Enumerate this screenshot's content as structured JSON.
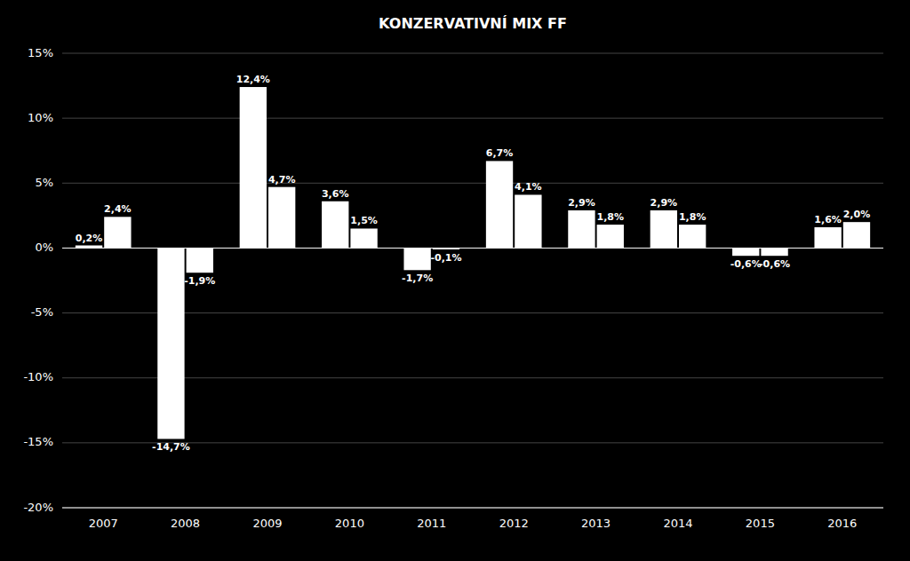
{
  "chart_data": {
    "type": "bar",
    "title": "KONZERVATIVNÍ MIX FF",
    "categories": [
      "2007",
      "2008",
      "2009",
      "2010",
      "2011",
      "2012",
      "2013",
      "2014",
      "2015",
      "2016"
    ],
    "series": [
      {
        "color": "#ffffff",
        "values": [
          0.2,
          -14.7,
          12.4,
          3.6,
          -1.7,
          6.7,
          2.9,
          2.9,
          -0.6,
          1.6
        ],
        "value_labels": [
          "0,2%",
          "-14,7%",
          "12,4%",
          "3,6%",
          "-1,7%",
          "6,7%",
          "2,9%",
          "2,9%",
          "-0,6%",
          "1,6%"
        ]
      },
      {
        "color": "#ffffff",
        "values": [
          2.4,
          -1.9,
          4.7,
          1.5,
          -0.1,
          4.1,
          1.8,
          1.8,
          -0.6,
          2.0
        ],
        "value_labels": [
          "2,4%",
          "-1,9%",
          "4,7%",
          "1,5%",
          "-0,1%",
          "4,1%",
          "1,8%",
          "1,8%",
          "-0,6%",
          "2,0%"
        ]
      }
    ],
    "ylim": [
      -20,
      15
    ],
    "yticks": [
      {
        "value": -20,
        "label": "-20%"
      },
      {
        "value": -15,
        "label": "-15%"
      },
      {
        "value": -10,
        "label": "-10%"
      },
      {
        "value": -5,
        "label": "-5%"
      },
      {
        "value": 0,
        "label": "0%"
      },
      {
        "value": 5,
        "label": "5%"
      },
      {
        "value": 10,
        "label": "10%"
      },
      {
        "value": 15,
        "label": "15%"
      }
    ],
    "grid": true,
    "data_labels": true
  }
}
